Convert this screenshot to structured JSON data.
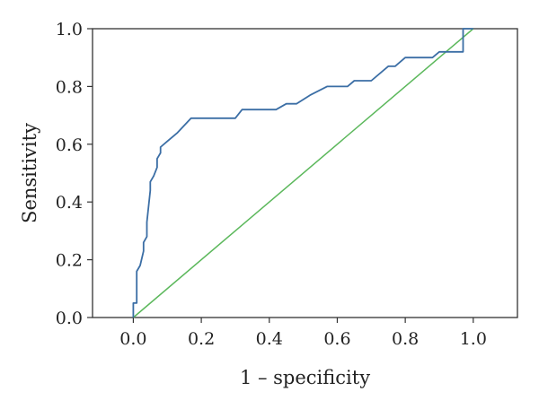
{
  "chart_data": {
    "type": "line",
    "title": "",
    "xlabel": "1 – specificity",
    "ylabel": "Sensitivity",
    "xlim": [
      -0.12,
      1.13
    ],
    "ylim": [
      0.0,
      1.0
    ],
    "x_ticks": [
      0.0,
      0.2,
      0.4,
      0.6,
      0.8,
      1.0
    ],
    "y_ticks": [
      0.0,
      0.2,
      0.4,
      0.6,
      0.8,
      1.0
    ],
    "x_tick_labels": [
      "0.0",
      "0.2",
      "0.4",
      "0.6",
      "0.8",
      "1.0"
    ],
    "y_tick_labels": [
      "0.0",
      "0.2",
      "0.4",
      "0.6",
      "0.8",
      "1.0"
    ],
    "grid": false,
    "legend": "none",
    "series": [
      {
        "color": "#3b6ea5",
        "x": [
          0.0,
          0.0,
          0.01,
          0.01,
          0.02,
          0.03,
          0.03,
          0.04,
          0.04,
          0.05,
          0.05,
          0.06,
          0.07,
          0.07,
          0.08,
          0.08,
          0.1,
          0.13,
          0.17,
          0.2,
          0.3,
          0.32,
          0.42,
          0.45,
          0.48,
          0.52,
          0.57,
          0.63,
          0.65,
          0.7,
          0.75,
          0.77,
          0.8,
          0.88,
          0.9,
          0.97,
          0.97,
          1.0
        ],
        "y": [
          0.0,
          0.05,
          0.05,
          0.16,
          0.18,
          0.23,
          0.26,
          0.28,
          0.33,
          0.44,
          0.47,
          0.49,
          0.52,
          0.55,
          0.57,
          0.59,
          0.61,
          0.64,
          0.69,
          0.69,
          0.69,
          0.72,
          0.72,
          0.74,
          0.74,
          0.77,
          0.8,
          0.8,
          0.82,
          0.82,
          0.87,
          0.87,
          0.9,
          0.9,
          0.92,
          0.92,
          1.0,
          1.0
        ]
      },
      {
        "color": "#5cb85c",
        "x": [
          0.0,
          1.0
        ],
        "y": [
          0.0,
          1.0
        ]
      }
    ]
  }
}
